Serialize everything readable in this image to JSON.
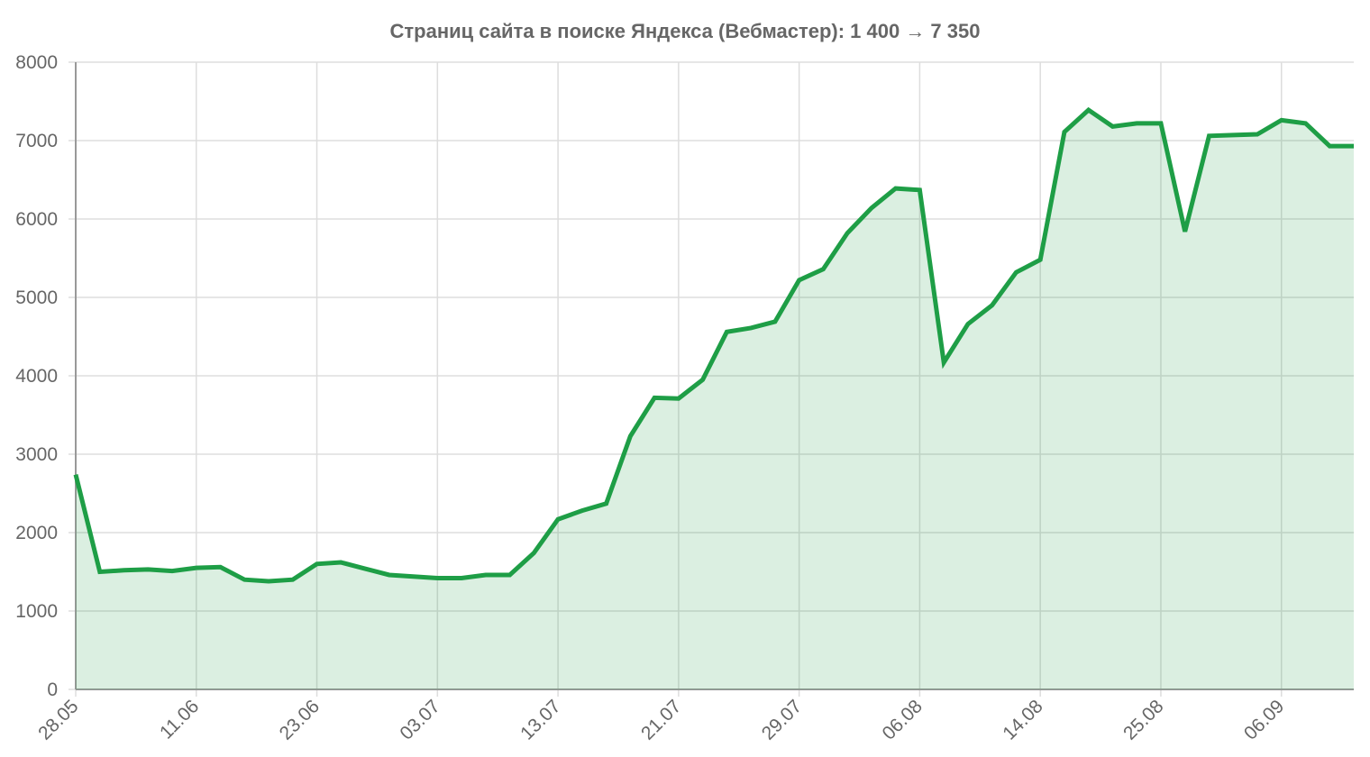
{
  "chart_data": {
    "type": "line",
    "title": "Страниц сайта в поиске Яндекса (Вебмастер): 1 400 → 7 350",
    "categories": [
      "28.05",
      null,
      null,
      null,
      null,
      "11.06",
      null,
      null,
      null,
      null,
      "23.06",
      null,
      null,
      null,
      null,
      "03.07",
      null,
      null,
      null,
      null,
      "13.07",
      null,
      null,
      null,
      null,
      "21.07",
      null,
      null,
      null,
      null,
      "29.07",
      null,
      null,
      null,
      null,
      "06.08",
      null,
      null,
      null,
      null,
      "14.08",
      null,
      null,
      null,
      null,
      "25.08",
      null,
      null,
      null,
      null,
      "06.09",
      null,
      null,
      null
    ],
    "series": [
      {
        "color": "#1e9e46",
        "values": [
          2740,
          1500,
          1520,
          1530,
          1510,
          1550,
          1560,
          1400,
          1380,
          1400,
          1600,
          1620,
          1540,
          1460,
          1440,
          1420,
          1420,
          1460,
          1460,
          1740,
          2170,
          2280,
          2370,
          3230,
          3720,
          3710,
          3950,
          4560,
          4610,
          4690,
          5220,
          5360,
          5820,
          6140,
          6390,
          6370,
          4170,
          4660,
          4900,
          5320,
          5480,
          7110,
          7390,
          7180,
          7220,
          7220,
          5840,
          7060,
          7070,
          7080,
          7260,
          7220,
          6930,
          6930
        ]
      }
    ],
    "ylim": [
      0,
      8000
    ],
    "yticks": [
      0,
      1000,
      2000,
      3000,
      4000,
      5000,
      6000,
      7000,
      8000
    ],
    "grid": true,
    "fill": true
  }
}
